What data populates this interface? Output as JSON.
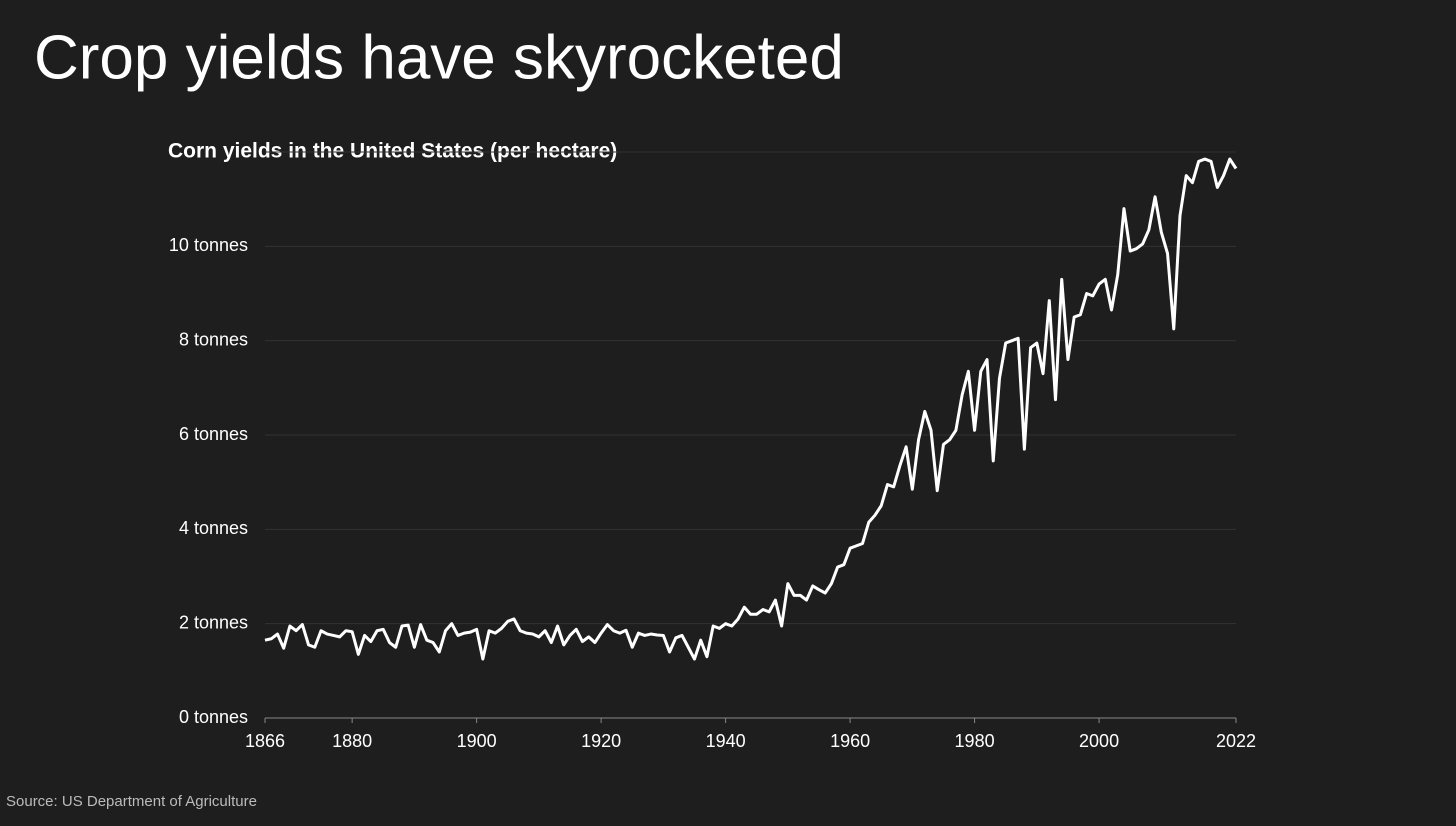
{
  "chart_data": {
    "type": "line",
    "headline": "Crop yields have skyrocketed",
    "title": "Corn yields in the United States (per hectare)",
    "source": "Source: US Department of Agriculture",
    "color": "#ffffff",
    "grid": true,
    "xlim": [
      1866,
      2022
    ],
    "xticks": [
      1866,
      1880,
      1900,
      1920,
      1940,
      1960,
      1980,
      2000,
      2022
    ],
    "ylim": [
      0,
      12
    ],
    "yticks": [
      {
        "value": 0,
        "label": "0 tonnes"
      },
      {
        "value": 2,
        "label": "2 tonnes"
      },
      {
        "value": 4,
        "label": "4 tonnes"
      },
      {
        "value": 6,
        "label": "6 tonnes"
      },
      {
        "value": 8,
        "label": "8 tonnes"
      },
      {
        "value": 10,
        "label": "10 tonnes"
      }
    ],
    "x": [
      1866,
      1867,
      1868,
      1869,
      1870,
      1871,
      1872,
      1873,
      1874,
      1875,
      1876,
      1877,
      1878,
      1879,
      1880,
      1881,
      1882,
      1883,
      1884,
      1885,
      1886,
      1887,
      1888,
      1889,
      1890,
      1891,
      1892,
      1893,
      1894,
      1895,
      1896,
      1897,
      1898,
      1899,
      1900,
      1901,
      1902,
      1903,
      1904,
      1905,
      1906,
      1907,
      1908,
      1909,
      1910,
      1911,
      1912,
      1913,
      1914,
      1915,
      1916,
      1917,
      1918,
      1919,
      1920,
      1921,
      1922,
      1923,
      1924,
      1925,
      1926,
      1927,
      1928,
      1929,
      1930,
      1931,
      1932,
      1933,
      1934,
      1935,
      1936,
      1937,
      1938,
      1939,
      1940,
      1941,
      1942,
      1943,
      1944,
      1945,
      1946,
      1947,
      1948,
      1949,
      1950,
      1951,
      1952,
      1953,
      1954,
      1955,
      1956,
      1957,
      1958,
      1959,
      1960,
      1961,
      1962,
      1963,
      1964,
      1965,
      1966,
      1967,
      1968,
      1969,
      1970,
      1971,
      1972,
      1973,
      1974,
      1975,
      1976,
      1977,
      1978,
      1979,
      1980,
      1981,
      1982,
      1983,
      1984,
      1985,
      1986,
      1987,
      1988,
      1989,
      1990,
      1991,
      1992,
      1993,
      1994,
      1995,
      1996,
      1997,
      1998,
      1999,
      2000,
      2001,
      2002,
      2003,
      2004,
      2005,
      2006,
      2007,
      2008,
      2009,
      2010,
      2011,
      2012,
      2013,
      2014,
      2015,
      2016,
      2017,
      2018,
      2019,
      2020,
      2021,
      2022
    ],
    "values": [
      1.65,
      1.68,
      1.78,
      1.48,
      1.95,
      1.85,
      1.98,
      1.55,
      1.5,
      1.85,
      1.78,
      1.75,
      1.72,
      1.85,
      1.83,
      1.35,
      1.75,
      1.62,
      1.85,
      1.88,
      1.6,
      1.5,
      1.95,
      1.97,
      1.5,
      1.98,
      1.65,
      1.6,
      1.4,
      1.85,
      2.0,
      1.75,
      1.8,
      1.82,
      1.88,
      1.25,
      1.85,
      1.8,
      1.9,
      2.05,
      2.1,
      1.85,
      1.8,
      1.78,
      1.72,
      1.85,
      1.6,
      1.95,
      1.55,
      1.75,
      1.88,
      1.62,
      1.72,
      1.6,
      1.8,
      1.98,
      1.85,
      1.8,
      1.86,
      1.5,
      1.8,
      1.75,
      1.78,
      1.76,
      1.75,
      1.4,
      1.7,
      1.75,
      1.5,
      1.25,
      1.65,
      1.3,
      1.95,
      1.9,
      2.0,
      1.95,
      2.1,
      2.35,
      2.2,
      2.2,
      2.3,
      2.25,
      2.5,
      1.95,
      2.85,
      2.6,
      2.6,
      2.5,
      2.8,
      2.72,
      2.65,
      2.85,
      3.2,
      3.25,
      3.6,
      3.65,
      3.7,
      4.15,
      4.3,
      4.5,
      4.95,
      4.9,
      5.35,
      5.75,
      4.85,
      5.9,
      6.5,
      6.1,
      4.82,
      5.8,
      5.9,
      6.1,
      6.85,
      7.35,
      6.1,
      7.35,
      7.6,
      5.45,
      7.2,
      7.95,
      8.0,
      8.05,
      5.7,
      7.85,
      7.95,
      7.3,
      8.85,
      6.75,
      9.3,
      7.6,
      8.5,
      8.55,
      9.0,
      8.95,
      9.2,
      9.3,
      8.65,
      9.4,
      10.8,
      9.9,
      9.95,
      10.05,
      10.35,
      11.05,
      10.3,
      9.85,
      8.25,
      10.65,
      11.5,
      11.35,
      11.8,
      11.85,
      11.8,
      11.25,
      11.5,
      11.85,
      11.65
    ]
  }
}
